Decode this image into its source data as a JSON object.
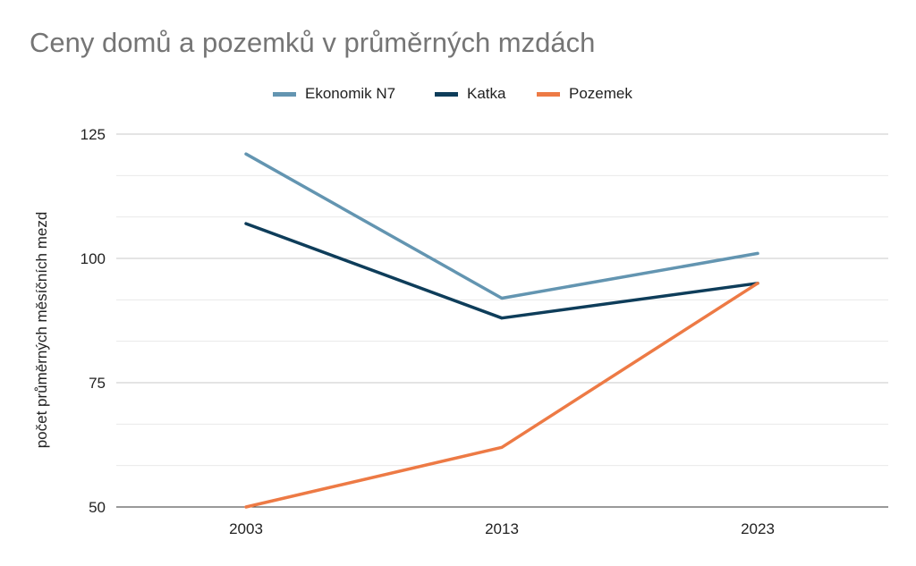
{
  "chart_data": {
    "type": "line",
    "title": "Ceny domů a pozemků v průměrných mzdách",
    "xlabel": "",
    "ylabel": "počet průměrných měsíčních mezd",
    "categories": [
      "2003",
      "2013",
      "2023"
    ],
    "ylim": [
      50,
      125
    ],
    "yticks": [
      50,
      75,
      100,
      125
    ],
    "grid": true,
    "legend_position": "top",
    "series": [
      {
        "name": "Ekonomik N7",
        "color": "#6395b1",
        "values": [
          121,
          92,
          101
        ]
      },
      {
        "name": "Katka",
        "color": "#0e3d5a",
        "values": [
          107,
          88,
          95
        ]
      },
      {
        "name": "Pozemek",
        "color": "#ed7a45",
        "values": [
          50,
          62,
          95
        ]
      }
    ]
  }
}
